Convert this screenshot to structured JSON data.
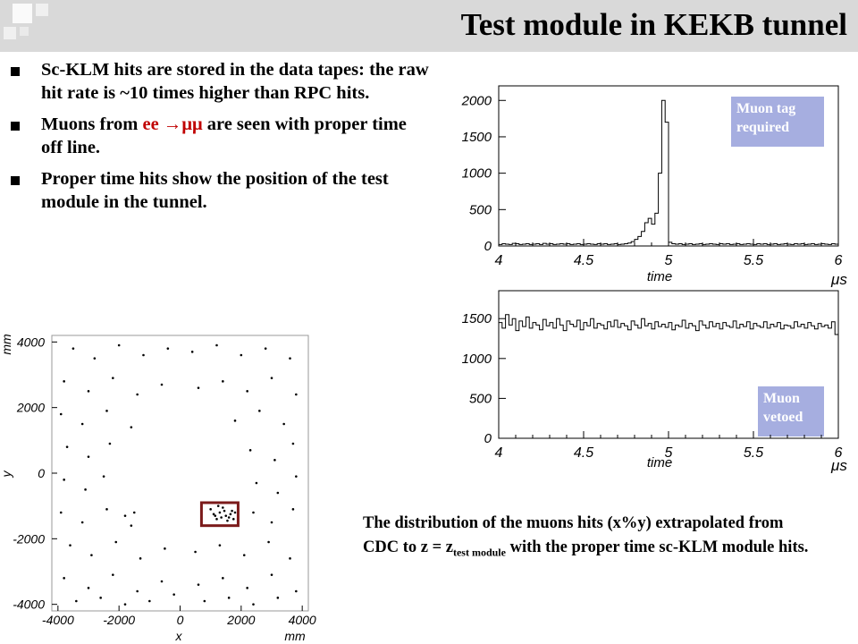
{
  "title": "Test module in KEKB tunnel",
  "bullets": [
    {
      "text": "Sc-KLM hits are stored in the data tapes: the raw hit rate is ~10 times higher than RPC hits."
    },
    {
      "pre": "Muons from ",
      "red": "ee →μμ",
      "post": " are seen with proper time off line."
    },
    {
      "text": "Proper time hits show the position of the test module in the tunnel."
    }
  ],
  "caption": {
    "line1": "The distribution of the muons hits (x%y) extrapolated from CDC to z = z",
    "sub": "test module",
    "line2": " with the proper time sc-KLM module hits."
  },
  "labels": {
    "tag_top": "Muon tag required",
    "tag_bottom": "Muon vetoed"
  },
  "colors": {
    "title_bar": "#d9d9d9",
    "tag_box": "#a6aee0",
    "highlight_box": "#7b1a1a",
    "red_text": "#c00000"
  },
  "chart_data": [
    {
      "type": "bar",
      "label": "Muon tag required",
      "xlabel": "time",
      "xunit": "μs",
      "xlim": [
        4,
        6
      ],
      "ylim": [
        0,
        2200
      ],
      "xticks": [
        "4",
        "4.5",
        "5",
        "5.5",
        "6"
      ],
      "yticks": [
        "0",
        "500",
        "1000",
        "1500",
        "2000"
      ],
      "bin_width": 0.02,
      "values": [
        20,
        30,
        25,
        20,
        35,
        30,
        20,
        25,
        30,
        20,
        25,
        30,
        20,
        35,
        25,
        30,
        20,
        25,
        30,
        25,
        30,
        20,
        25,
        30,
        20,
        25,
        30,
        25,
        20,
        30,
        25,
        30,
        20,
        25,
        30,
        20,
        25,
        30,
        40,
        60,
        90,
        130,
        200,
        320,
        380,
        300,
        450,
        1000,
        2000,
        1700,
        50,
        30,
        25,
        30,
        20,
        25,
        30,
        20,
        25,
        30,
        20,
        25,
        30,
        25,
        20,
        30,
        25,
        30,
        20,
        25,
        30,
        20,
        25,
        30,
        25,
        20,
        30,
        25,
        30,
        20,
        25,
        30,
        20,
        25,
        30,
        25,
        20,
        30,
        25,
        30,
        20,
        25,
        30,
        20,
        25,
        30,
        25,
        20,
        30,
        25
      ]
    },
    {
      "type": "bar",
      "label": "Muon vetoed",
      "xlabel": "time",
      "xunit": "μs",
      "xlim": [
        4,
        6
      ],
      "ylim": [
        0,
        1850
      ],
      "xticks": [
        "4",
        "4.5",
        "5",
        "5.5",
        "6"
      ],
      "yticks": [
        "0",
        "500",
        "1000",
        "1500"
      ],
      "bin_width": 0.02,
      "values": [
        1450,
        1380,
        1550,
        1420,
        1500,
        1350,
        1470,
        1400,
        1520,
        1380,
        1450,
        1420,
        1360,
        1490,
        1410,
        1450,
        1380,
        1500,
        1420,
        1350,
        1470,
        1430,
        1400,
        1480,
        1360,
        1450,
        1410,
        1500,
        1380,
        1440,
        1420,
        1370,
        1460,
        1400,
        1480,
        1390,
        1440,
        1410,
        1360,
        1470,
        1420,
        1380,
        1500,
        1410,
        1440,
        1370,
        1460,
        1400,
        1430,
        1390,
        1450,
        1360,
        1420,
        1400,
        1480,
        1380,
        1440,
        1410,
        1350,
        1470,
        1420,
        1380,
        1460,
        1400,
        1440,
        1370,
        1450,
        1410,
        1390,
        1470,
        1380,
        1430,
        1400,
        1460,
        1370,
        1440,
        1410,
        1390,
        1460,
        1380,
        1430,
        1400,
        1450,
        1370,
        1420,
        1410,
        1380,
        1460,
        1400,
        1430,
        1380,
        1450,
        1410,
        1370,
        1440,
        1400,
        1420,
        1380,
        1460,
        1300
      ]
    },
    {
      "type": "scatter",
      "xlabel": "x",
      "xunit": "mm",
      "ylabel": "y",
      "yunit": "mm",
      "xlim": [
        -4200,
        4200
      ],
      "ylim": [
        -4200,
        4200
      ],
      "xticks": [
        "-4000",
        "-2000",
        "0",
        "2000",
        "4000"
      ],
      "yticks": [
        "-4000",
        "-2000",
        "0",
        "2000",
        "4000"
      ],
      "highlight_box": {
        "x": [
          700,
          1900
        ],
        "y": [
          -1600,
          -900
        ]
      },
      "points": [
        [
          1100,
          -1250
        ],
        [
          1300,
          -1200
        ],
        [
          1500,
          -1300
        ],
        [
          1700,
          -1150
        ],
        [
          1200,
          -1400
        ],
        [
          1400,
          -1050
        ],
        [
          1600,
          -1350
        ],
        [
          1800,
          -1200
        ],
        [
          1000,
          -1100
        ],
        [
          1550,
          -1450
        ],
        [
          1250,
          -1000
        ],
        [
          1650,
          -1250
        ],
        [
          1350,
          -1350
        ],
        [
          1450,
          -1150
        ],
        [
          1750,
          -1400
        ],
        [
          1150,
          -1300
        ],
        [
          -3500,
          3800
        ],
        [
          -2800,
          3500
        ],
        [
          -2000,
          3900
        ],
        [
          -1200,
          3600
        ],
        [
          -400,
          3800
        ],
        [
          400,
          3700
        ],
        [
          1200,
          3900
        ],
        [
          2000,
          3600
        ],
        [
          2800,
          3800
        ],
        [
          3600,
          3500
        ],
        [
          -3800,
          2800
        ],
        [
          -3000,
          2500
        ],
        [
          -2200,
          2900
        ],
        [
          -1400,
          2400
        ],
        [
          -600,
          2700
        ],
        [
          600,
          2600
        ],
        [
          1400,
          2800
        ],
        [
          2200,
          2500
        ],
        [
          3000,
          2900
        ],
        [
          3800,
          2400
        ],
        [
          -3900,
          1800
        ],
        [
          -3200,
          1500
        ],
        [
          -2400,
          1900
        ],
        [
          -1600,
          1400
        ],
        [
          1800,
          1600
        ],
        [
          2600,
          1900
        ],
        [
          3400,
          1500
        ],
        [
          -3700,
          800
        ],
        [
          -3000,
          500
        ],
        [
          -2300,
          900
        ],
        [
          2300,
          700
        ],
        [
          3100,
          400
        ],
        [
          3700,
          900
        ],
        [
          -3800,
          -200
        ],
        [
          -3100,
          -500
        ],
        [
          -2500,
          -100
        ],
        [
          2500,
          -300
        ],
        [
          3200,
          -600
        ],
        [
          3800,
          -100
        ],
        [
          -3900,
          -1200
        ],
        [
          -3200,
          -1500
        ],
        [
          -2400,
          -1100
        ],
        [
          -1600,
          -1600
        ],
        [
          -1800,
          -1300
        ],
        [
          -1500,
          -1200
        ],
        [
          2400,
          -1200
        ],
        [
          3000,
          -1500
        ],
        [
          3700,
          -1100
        ],
        [
          -3600,
          -2200
        ],
        [
          -2900,
          -2500
        ],
        [
          -2100,
          -2100
        ],
        [
          -1300,
          -2600
        ],
        [
          -500,
          -2300
        ],
        [
          500,
          -2400
        ],
        [
          1300,
          -2200
        ],
        [
          2100,
          -2500
        ],
        [
          2900,
          -2100
        ],
        [
          3600,
          -2600
        ],
        [
          -3800,
          -3200
        ],
        [
          -3000,
          -3500
        ],
        [
          -2200,
          -3100
        ],
        [
          -1400,
          -3600
        ],
        [
          -600,
          -3300
        ],
        [
          600,
          -3400
        ],
        [
          1400,
          -3200
        ],
        [
          2200,
          -3500
        ],
        [
          3000,
          -3100
        ],
        [
          3800,
          -3600
        ],
        [
          -3400,
          -3900
        ],
        [
          -2600,
          -3800
        ],
        [
          -1800,
          -4000
        ],
        [
          -1000,
          -3900
        ],
        [
          -200,
          -3700
        ],
        [
          800,
          -3900
        ],
        [
          1600,
          -3800
        ],
        [
          2400,
          -4000
        ],
        [
          3200,
          -3800
        ]
      ]
    }
  ]
}
